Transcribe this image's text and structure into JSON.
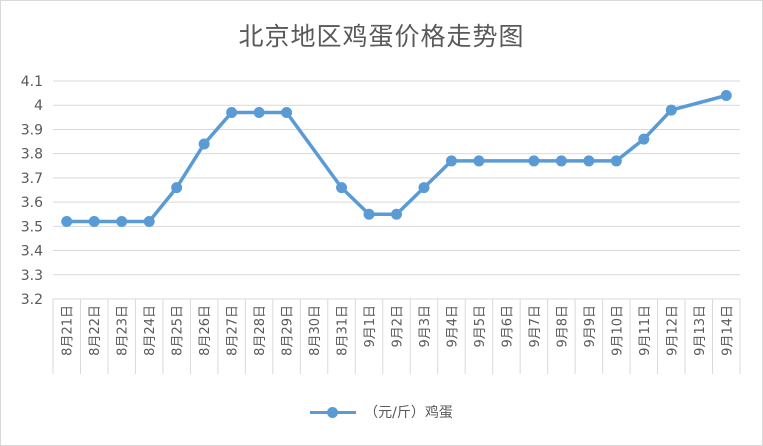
{
  "chart_data": {
    "type": "line",
    "title": "北京地区鸡蛋价格走势图",
    "categories": [
      "8月21日",
      "8月22日",
      "8月23日",
      "8月24日",
      "8月25日",
      "8月26日",
      "8月27日",
      "8月28日",
      "8月29日",
      "8月30日",
      "8月31日",
      "9月1日",
      "9月2日",
      "9月3日",
      "9月4日",
      "9月5日",
      "9月6日",
      "9月7日",
      "9月8日",
      "9月9日",
      "9月10日",
      "9月11日",
      "9月12日",
      "9月13日",
      "9月14日"
    ],
    "series": [
      {
        "name": "（元/斤）鸡蛋",
        "values": [
          3.52,
          3.52,
          3.52,
          3.52,
          3.66,
          3.84,
          3.97,
          3.97,
          3.97,
          null,
          3.66,
          3.55,
          3.55,
          3.66,
          3.77,
          3.77,
          null,
          3.77,
          3.77,
          3.77,
          3.77,
          3.86,
          3.98,
          null,
          4.04
        ]
      }
    ],
    "ylim": [
      3.2,
      4.1
    ],
    "yticks": [
      "3.2",
      "3.3",
      "3.4",
      "3.5",
      "3.6",
      "3.7",
      "3.8",
      "3.9",
      "4",
      "4.1"
    ],
    "grid": true,
    "legend": "bottom",
    "color": "#5b9bd5"
  }
}
